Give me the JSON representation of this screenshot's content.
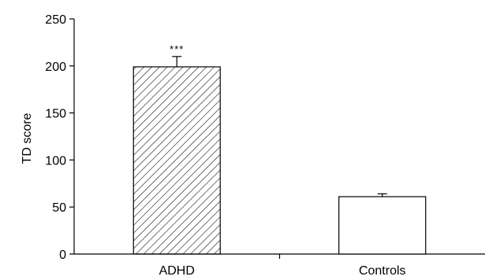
{
  "chart_data": {
    "type": "bar",
    "title": "",
    "xlabel": "",
    "ylabel": "TD score",
    "ylim": [
      0,
      250
    ],
    "yticks": [
      0,
      50,
      100,
      150,
      200,
      250
    ],
    "categories": [
      "ADHD",
      "Controls"
    ],
    "values": [
      199,
      61
    ],
    "errors": [
      11,
      3
    ],
    "annotations": [
      "***",
      ""
    ],
    "fills": [
      "hatched",
      "white"
    ],
    "grid": false,
    "legend": "none"
  }
}
